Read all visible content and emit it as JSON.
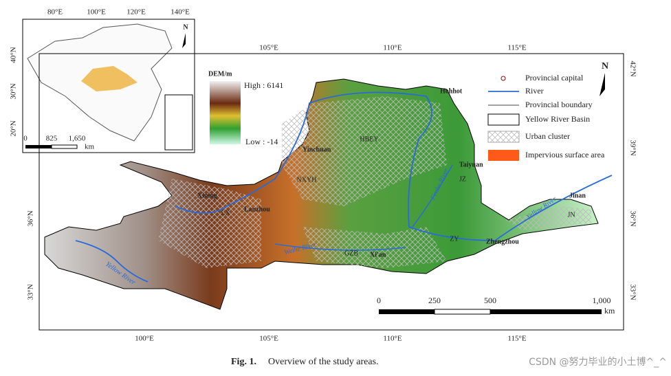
{
  "inset": {
    "lon_labels": [
      "80°E",
      "100°E",
      "120°E",
      "140°E"
    ],
    "lat_labels": [
      "40°N",
      "30°N",
      "20°N"
    ],
    "scale_ticks": [
      "0",
      "825",
      "1,650"
    ],
    "scale_unit": "km",
    "north": "N"
  },
  "map": {
    "top_lon": [
      "105°E",
      "110°E",
      "115°E"
    ],
    "bottom_lon": [
      "100°E",
      "105°E",
      "110°E",
      "115°E"
    ],
    "right_lat": [
      "42°N",
      "39°N",
      "36°N",
      "33°N"
    ],
    "left_lat": [
      "36°N",
      "33°N"
    ],
    "north": "N"
  },
  "dem_legend": {
    "title": "DEM/m",
    "high": "High : 6141",
    "low": "Low : -14"
  },
  "legend": [
    "Provincial capital",
    "River",
    "Provincial boundary",
    "Yellow River Basin",
    "Urban cluster",
    "Impervious surface area"
  ],
  "places": [
    "Hohhot",
    "HBEY",
    "Yinchuan",
    "NXYH",
    "Taiyuan",
    "JZ",
    "Fenhe River",
    "Xining",
    "LX",
    "Lanzhou",
    "Weihe River",
    "Xi'an",
    "GZB",
    "ZY",
    "Zhengzhou",
    "Jinan",
    "JN",
    "Yellow River",
    "Yellow River"
  ],
  "scale": {
    "ticks": [
      "0",
      "250",
      "500",
      "1,000"
    ],
    "unit": "km"
  },
  "caption": {
    "label": "Fig. 1.",
    "text": "Overview of the study areas."
  },
  "watermark": "CSDN @努力毕业的小土博^_^"
}
